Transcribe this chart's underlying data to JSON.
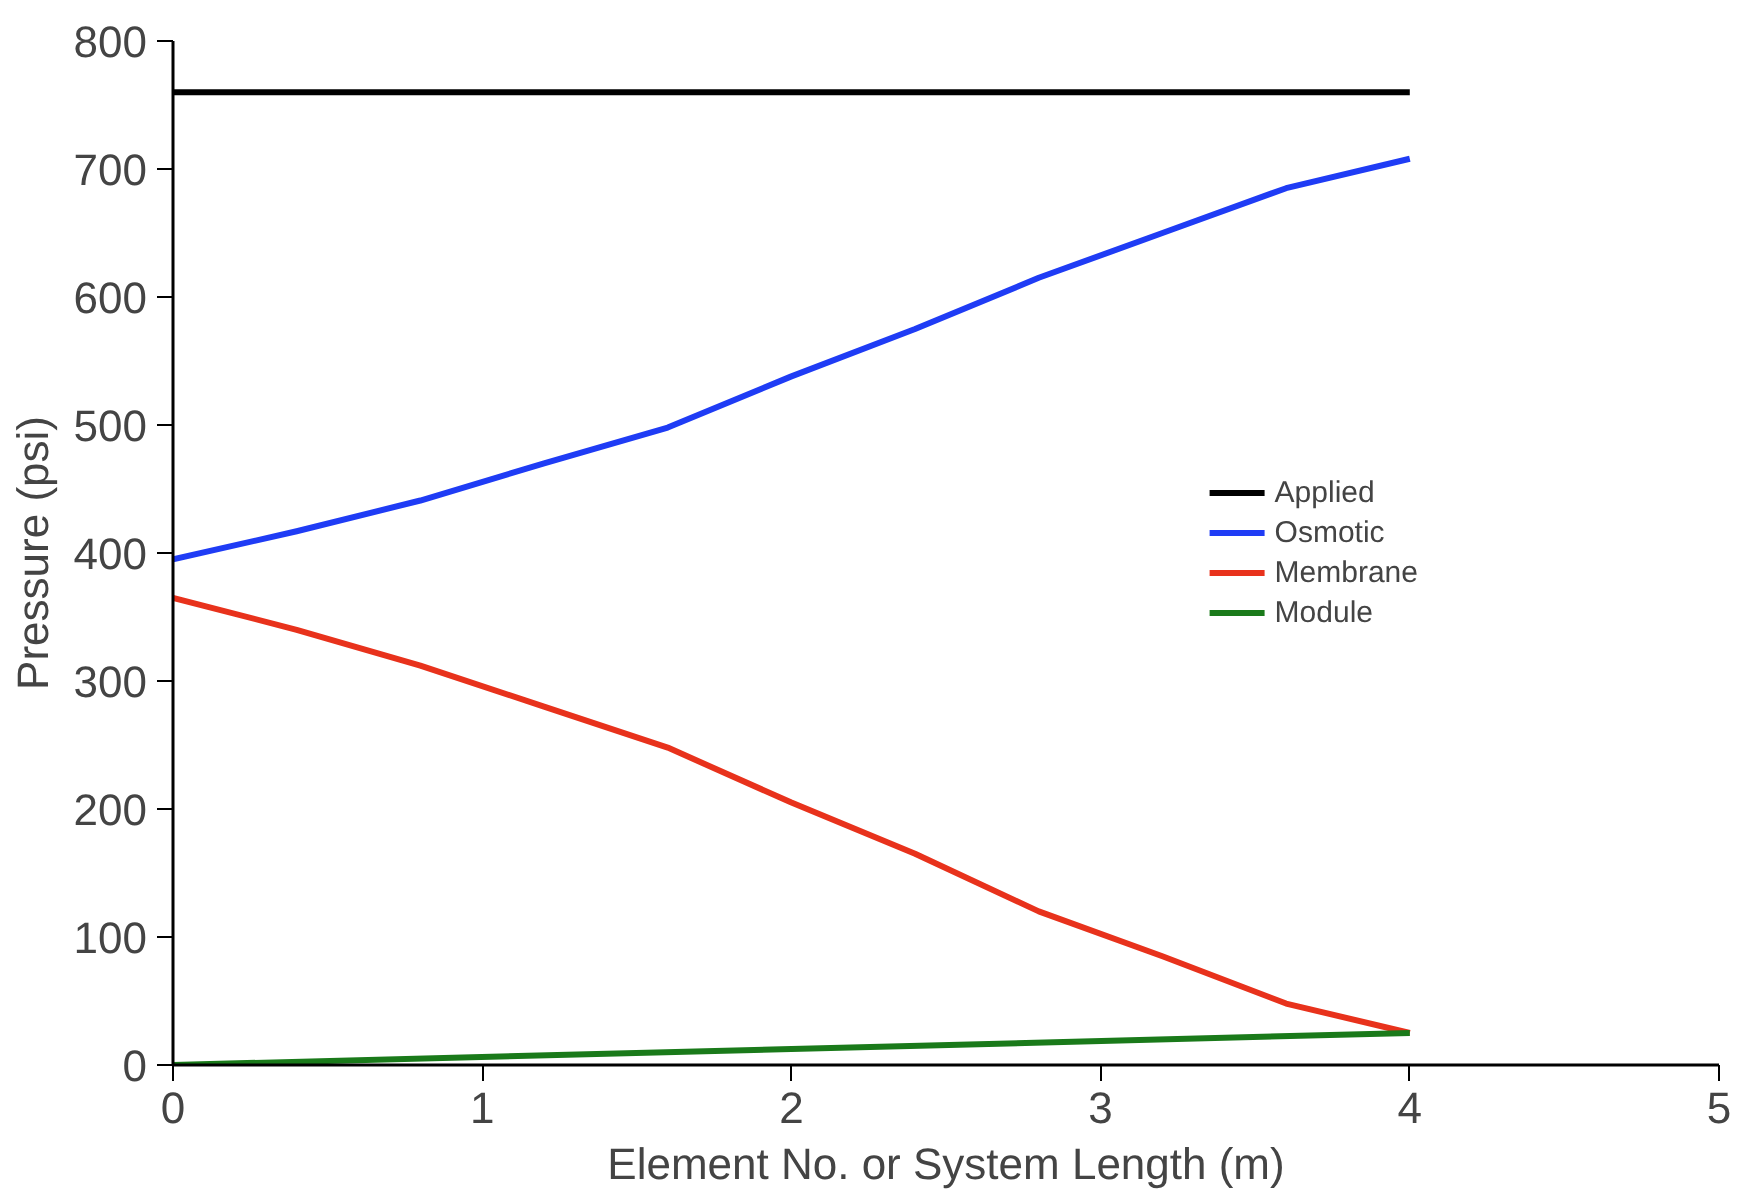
{
  "chart_data": {
    "type": "line",
    "xlabel": "Element No. or System Length (m)",
    "ylabel": "Pressure (psi)",
    "xlim": [
      0,
      5
    ],
    "xticks": [
      0,
      1,
      2,
      3,
      4,
      5
    ],
    "ylim": [
      0,
      800
    ],
    "yticks": [
      0,
      100,
      200,
      300,
      400,
      500,
      600,
      700,
      800
    ],
    "grid": false,
    "legend": "right",
    "marker": "none",
    "line_style": "solid",
    "series": [
      {
        "name": "Applied",
        "color": "#000000",
        "x": [
          0,
          4
        ],
        "values": [
          760,
          760
        ]
      },
      {
        "name": "Osmotic",
        "color": "#1f3cf5",
        "x": [
          0,
          0.4,
          0.8,
          1.2,
          1.6,
          2.0,
          2.4,
          2.8,
          3.2,
          3.6,
          4.0
        ],
        "values": [
          395,
          417,
          441,
          470,
          498,
          538,
          575,
          615,
          650,
          685,
          708
        ]
      },
      {
        "name": "Membrane",
        "color": "#e8321c",
        "x": [
          0,
          0.4,
          0.8,
          1.2,
          1.6,
          2.0,
          2.4,
          2.8,
          3.2,
          3.6,
          4.0
        ],
        "values": [
          365,
          340,
          312,
          280,
          248,
          205,
          165,
          120,
          85,
          48,
          25
        ]
      },
      {
        "name": "Module",
        "color": "#1a7a1a",
        "x": [
          0,
          4
        ],
        "values": [
          0,
          25
        ]
      }
    ]
  }
}
